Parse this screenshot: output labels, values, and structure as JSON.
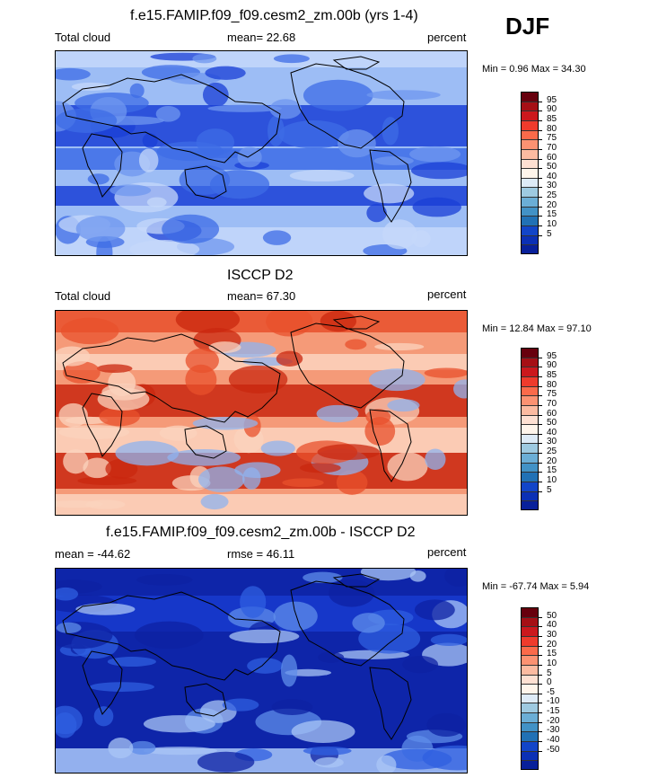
{
  "season": "DJF",
  "panels": [
    {
      "title": "f.e15.FAMIP.f09_f09.cesm2_zm.00b (yrs 1-4)",
      "left_label": "Total cloud",
      "center_label": "mean=  22.68",
      "right_label": "percent",
      "minmax": "Min =   0.96 Max =  34.30",
      "colorbar": {
        "colors": [
          "#67000d",
          "#a50f15",
          "#cb181d",
          "#ef3b2c",
          "#fb6a4a",
          "#fc9272",
          "#fcbba1",
          "#fee0d2",
          "#fff5eb",
          "#deebf7",
          "#9ecae1",
          "#6baed6",
          "#4292c6",
          "#2171b5",
          "#1245c8",
          "#0b30b5",
          "#08209a"
        ],
        "labels": [
          "95",
          "90",
          "85",
          "80",
          "75",
          "70",
          "60",
          "50",
          "40",
          "30",
          "25",
          "20",
          "15",
          "10",
          "5"
        ]
      },
      "map": {
        "base": "#9dbdf5",
        "palette": [
          "#1a3fd6",
          "#3d6ce6",
          "#6f97ef",
          "#c6d8fa"
        ]
      }
    },
    {
      "title": "ISCCP D2",
      "left_label": "Total cloud",
      "center_label": "mean=  67.30",
      "right_label": "percent",
      "minmax": "Min =  12.84 Max =  97.10",
      "colorbar": {
        "colors": [
          "#67000d",
          "#a50f15",
          "#cb181d",
          "#ef3b2c",
          "#fb6a4a",
          "#fc9272",
          "#fcbba1",
          "#fee0d2",
          "#fff5eb",
          "#deebf7",
          "#9ecae1",
          "#6baed6",
          "#4292c6",
          "#2171b5",
          "#1245c8",
          "#0b30b5",
          "#08209a"
        ],
        "labels": [
          "95",
          "90",
          "85",
          "80",
          "75",
          "70",
          "60",
          "50",
          "40",
          "30",
          "25",
          "20",
          "15",
          "10",
          "5"
        ]
      },
      "map": {
        "base": "#f59a78",
        "palette": [
          "#c9270f",
          "#e8502c",
          "#fbd3be",
          "#8fb3ef"
        ]
      }
    },
    {
      "title": "f.e15.FAMIP.f09_f09.cesm2_zm.00b - ISCCP D2",
      "left_label": "mean = -44.62",
      "center_label": "rmse =  46.11",
      "right_label": "percent",
      "minmax": "Min = -67.74 Max =   5.94",
      "colorbar": {
        "colors": [
          "#67000d",
          "#a50f15",
          "#cb181d",
          "#ef3b2c",
          "#fb6a4a",
          "#fc9272",
          "#fcbba1",
          "#fee0d2",
          "#fff5eb",
          "#deebf7",
          "#9ecae1",
          "#6baed6",
          "#4292c6",
          "#2171b5",
          "#1245c8",
          "#0b30b5",
          "#08209a"
        ],
        "labels": [
          "50",
          "40",
          "30",
          "20",
          "15",
          "10",
          "5",
          "0",
          "-5",
          "-10",
          "-15",
          "-20",
          "-30",
          "-40",
          "-50"
        ]
      },
      "map": {
        "base": "#1637c9",
        "palette": [
          "#0d22a3",
          "#2f5fe0",
          "#5f8ee9",
          "#a9c5f5"
        ]
      }
    }
  ]
}
